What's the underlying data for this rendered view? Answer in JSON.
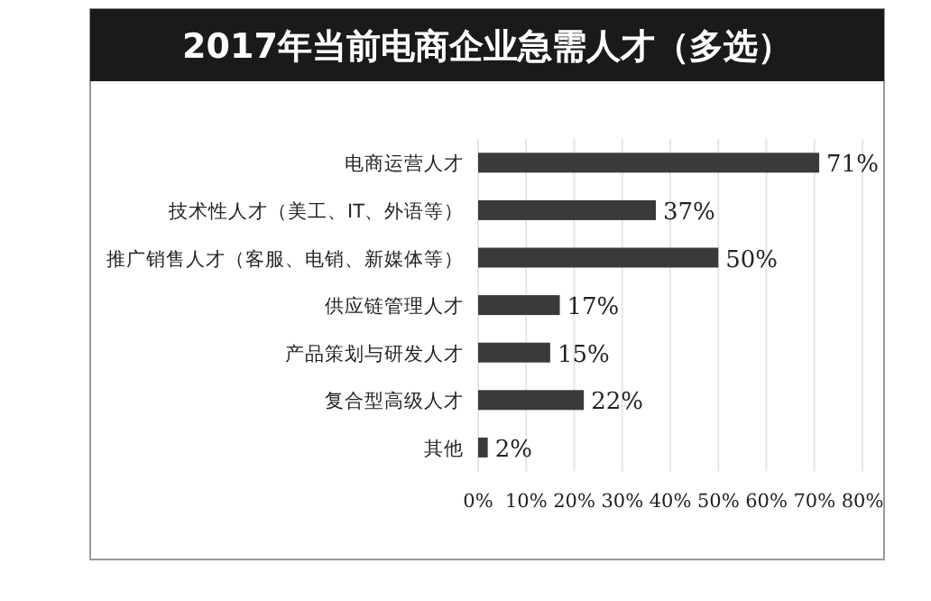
{
  "chart_data": {
    "type": "bar",
    "orientation": "horizontal",
    "title": "2017年当前电商企业急需人才（多选）",
    "categories": [
      "电商运营人才",
      "技术性人才（美工、IT、外语等）",
      "推广销售人才（客服、电销、新媒体等）",
      "供应链管理人才",
      "产品策划与研发人才",
      "复合型高级人才",
      "其他"
    ],
    "values": [
      71,
      37,
      50,
      17,
      15,
      22,
      2
    ],
    "value_labels": [
      "71%",
      "37%",
      "50%",
      "17%",
      "15%",
      "22%",
      "2%"
    ],
    "color": "#3a3a3a",
    "xlim": [
      0,
      80
    ],
    "xticks": [
      {
        "value": 0,
        "label": "0%"
      },
      {
        "value": 10,
        "label": "10%"
      },
      {
        "value": 20,
        "label": "20%"
      },
      {
        "value": 30,
        "label": "30%"
      },
      {
        "value": 40,
        "label": "40%"
      },
      {
        "value": 50,
        "label": "50%"
      },
      {
        "value": 60,
        "label": "60%"
      },
      {
        "value": 70,
        "label": "70%"
      },
      {
        "value": 80,
        "label": "80%"
      }
    ],
    "grid": "x"
  }
}
